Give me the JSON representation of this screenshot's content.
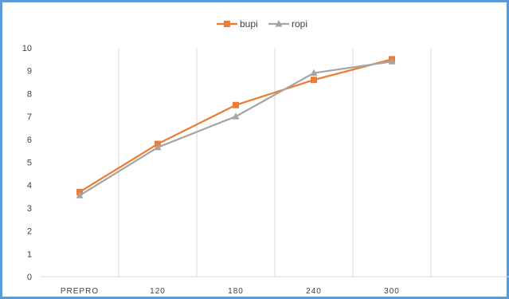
{
  "chart_data": {
    "type": "line",
    "title": "",
    "xlabel": "",
    "ylabel": "",
    "categories": [
      "PREPRO",
      "120",
      "180",
      "240",
      "300"
    ],
    "ylim": [
      0,
      10
    ],
    "yticks": [
      0,
      1,
      2,
      3,
      4,
      5,
      6,
      7,
      8,
      9,
      10
    ],
    "grid": "vertical",
    "legend_position": "top",
    "series": [
      {
        "name": "bupi",
        "values": [
          3.7,
          5.8,
          7.5,
          8.6,
          9.5
        ],
        "color": "#ed7d31",
        "marker": "square"
      },
      {
        "name": "ropi",
        "values": [
          3.55,
          5.65,
          7.0,
          8.9,
          9.4
        ],
        "color": "#a5a5a5",
        "marker": "triangle"
      }
    ]
  }
}
